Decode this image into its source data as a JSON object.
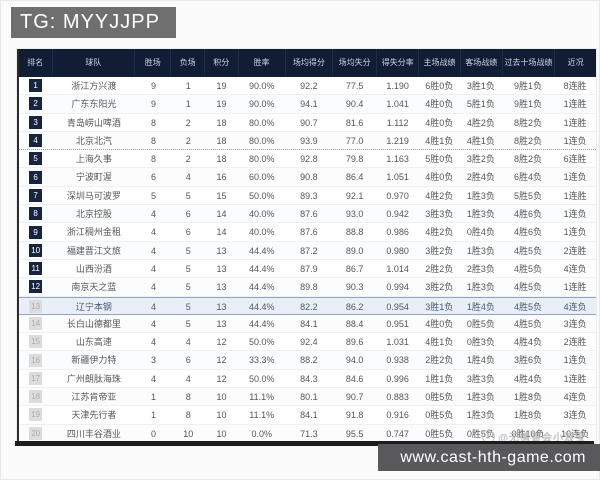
{
  "banner": {
    "label": "TG: MYYJJPP"
  },
  "footer": {
    "url": "www.cast-hth-game.com"
  },
  "watermark": {
    "icon": "☺",
    "text": "@无情哥会小浪宝"
  },
  "colors": {
    "header_bg": "#101d35",
    "highlight_row_bg": "#e9eff8",
    "highlight_border": "#8aa6c9",
    "rank_badge_dark": "#172440",
    "rank_badge_light": "#dcdcdc",
    "tg_banner_gray": "#6f6f6f",
    "url_banner_gray": "#59595b"
  },
  "table": {
    "headers": [
      "排名",
      "球队",
      "胜场",
      "负场",
      "积分",
      "胜率",
      "场均得分",
      "场均失分",
      "得失分率",
      "主场战绩",
      "客场战绩",
      "过去十场战绩",
      "近况"
    ],
    "rows": [
      {
        "rank": "1",
        "team": "浙江方兴渡",
        "wins": "9",
        "losses": "1",
        "points": "19",
        "win_rate": "90.0%",
        "avg_for": "92.2",
        "avg_against": "77.5",
        "ratio": "1.190",
        "home": "6胜0负",
        "away": "3胜1负",
        "last10": "9胜1负",
        "recent": "8连胜"
      },
      {
        "rank": "2",
        "team": "广东东阳光",
        "wins": "9",
        "losses": "1",
        "points": "19",
        "win_rate": "90.0%",
        "avg_for": "94.1",
        "avg_against": "90.4",
        "ratio": "1.041",
        "home": "4胜0负",
        "away": "5胜1负",
        "last10": "9胜1负",
        "recent": "1连胜"
      },
      {
        "rank": "3",
        "team": "青岛崂山啤酒",
        "wins": "8",
        "losses": "2",
        "points": "18",
        "win_rate": "80.0%",
        "avg_for": "90.7",
        "avg_against": "81.6",
        "ratio": "1.112",
        "home": "4胜0负",
        "away": "4胜2负",
        "last10": "8胜2负",
        "recent": "1连胜"
      },
      {
        "rank": "4",
        "team": "北京北汽",
        "wins": "8",
        "losses": "2",
        "points": "18",
        "win_rate": "80.0%",
        "avg_for": "93.9",
        "avg_against": "77.0",
        "ratio": "1.219",
        "home": "4胜1负",
        "away": "4胜1负",
        "last10": "8胜2负",
        "recent": "1连负"
      },
      {
        "rank": "5",
        "team": "上海久事",
        "wins": "8",
        "losses": "2",
        "points": "18",
        "win_rate": "80.0%",
        "avg_for": "92.8",
        "avg_against": "79.8",
        "ratio": "1.163",
        "home": "5胜0负",
        "away": "3胜2负",
        "last10": "8胜2负",
        "recent": "6连胜"
      },
      {
        "rank": "6",
        "team": "宁波町渥",
        "wins": "6",
        "losses": "4",
        "points": "16",
        "win_rate": "60.0%",
        "avg_for": "90.8",
        "avg_against": "86.4",
        "ratio": "1.051",
        "home": "4胜0负",
        "away": "2胜4负",
        "last10": "6胜4负",
        "recent": "1连负"
      },
      {
        "rank": "7",
        "team": "深圳马可波罗",
        "wins": "5",
        "losses": "5",
        "points": "15",
        "win_rate": "50.0%",
        "avg_for": "89.3",
        "avg_against": "92.1",
        "ratio": "0.970",
        "home": "4胜2负",
        "away": "1胜3负",
        "last10": "5胜5负",
        "recent": "1连胜"
      },
      {
        "rank": "8",
        "team": "北京控股",
        "wins": "4",
        "losses": "6",
        "points": "14",
        "win_rate": "40.0%",
        "avg_for": "87.6",
        "avg_against": "93.0",
        "ratio": "0.942",
        "home": "3胜3负",
        "away": "1胜3负",
        "last10": "4胜6负",
        "recent": "1连负"
      },
      {
        "rank": "9",
        "team": "浙江稠州金租",
        "wins": "4",
        "losses": "6",
        "points": "14",
        "win_rate": "40.0%",
        "avg_for": "87.6",
        "avg_against": "88.8",
        "ratio": "0.986",
        "home": "4胜2负",
        "away": "0胜4负",
        "last10": "4胜6负",
        "recent": "1连负"
      },
      {
        "rank": "10",
        "team": "福建晋江文旅",
        "wins": "4",
        "losses": "5",
        "points": "13",
        "win_rate": "44.4%",
        "avg_for": "87.2",
        "avg_against": "89.0",
        "ratio": "0.980",
        "home": "3胜2负",
        "away": "1胜3负",
        "last10": "4胜5负",
        "recent": "2连胜"
      },
      {
        "rank": "11",
        "team": "山西汾酒",
        "wins": "4",
        "losses": "5",
        "points": "13",
        "win_rate": "44.4%",
        "avg_for": "87.9",
        "avg_against": "86.7",
        "ratio": "1.014",
        "home": "2胜2负",
        "away": "2胜3负",
        "last10": "4胜5负",
        "recent": "4连负"
      },
      {
        "rank": "12",
        "team": "南京天之蓝",
        "wins": "4",
        "losses": "5",
        "points": "13",
        "win_rate": "44.4%",
        "avg_for": "89.8",
        "avg_against": "90.3",
        "ratio": "0.994",
        "home": "3胜2负",
        "away": "1胜3负",
        "last10": "4胜5负",
        "recent": "1连胜"
      },
      {
        "rank": "13",
        "team": "辽宁本钢",
        "wins": "4",
        "losses": "5",
        "points": "13",
        "win_rate": "44.4%",
        "avg_for": "82.2",
        "avg_against": "86.2",
        "ratio": "0.954",
        "home": "3胜1负",
        "away": "1胜4负",
        "last10": "4胜5负",
        "recent": "4连负"
      },
      {
        "rank": "14",
        "team": "长白山德都里",
        "wins": "4",
        "losses": "5",
        "points": "13",
        "win_rate": "44.4%",
        "avg_for": "84.1",
        "avg_against": "88.4",
        "ratio": "0.951",
        "home": "4胜0负",
        "away": "0胜5负",
        "last10": "4胜5负",
        "recent": "3连负"
      },
      {
        "rank": "15",
        "team": "山东高速",
        "wins": "4",
        "losses": "4",
        "points": "12",
        "win_rate": "50.0%",
        "avg_for": "92.4",
        "avg_against": "89.6",
        "ratio": "1.031",
        "home": "4胜1负",
        "away": "0胜3负",
        "last10": "4胜4负",
        "recent": "2连胜"
      },
      {
        "rank": "16",
        "team": "新疆伊力特",
        "wins": "3",
        "losses": "6",
        "points": "12",
        "win_rate": "33.3%",
        "avg_for": "88.2",
        "avg_against": "94.0",
        "ratio": "0.938",
        "home": "2胜2负",
        "away": "1胜4负",
        "last10": "3胜6负",
        "recent": "1连负"
      },
      {
        "rank": "17",
        "team": "广州朗肽海珠",
        "wins": "4",
        "losses": "4",
        "points": "12",
        "win_rate": "50.0%",
        "avg_for": "84.3",
        "avg_against": "84.6",
        "ratio": "0.996",
        "home": "1胜1负",
        "away": "3胜3负",
        "last10": "4胜4负",
        "recent": "1连胜"
      },
      {
        "rank": "18",
        "team": "江苏肯帝亚",
        "wins": "1",
        "losses": "8",
        "points": "10",
        "win_rate": "11.1%",
        "avg_for": "80.1",
        "avg_against": "90.7",
        "ratio": "0.883",
        "home": "0胜5负",
        "away": "1胜3负",
        "last10": "1胜8负",
        "recent": "4连负"
      },
      {
        "rank": "19",
        "team": "天津先行者",
        "wins": "1",
        "losses": "8",
        "points": "10",
        "win_rate": "11.1%",
        "avg_for": "84.1",
        "avg_against": "91.8",
        "ratio": "0.916",
        "home": "0胜5负",
        "away": "1胜3负",
        "last10": "1胜8负",
        "recent": "3连负"
      },
      {
        "rank": "20",
        "team": "四川丰谷酒业",
        "wins": "0",
        "losses": "10",
        "points": "10",
        "win_rate": "0.0%",
        "avg_for": "71.3",
        "avg_against": "95.5",
        "ratio": "0.747",
        "home": "0胜5负",
        "away": "0胜5负",
        "last10": "0胜10负",
        "recent": "10连负"
      }
    ]
  }
}
